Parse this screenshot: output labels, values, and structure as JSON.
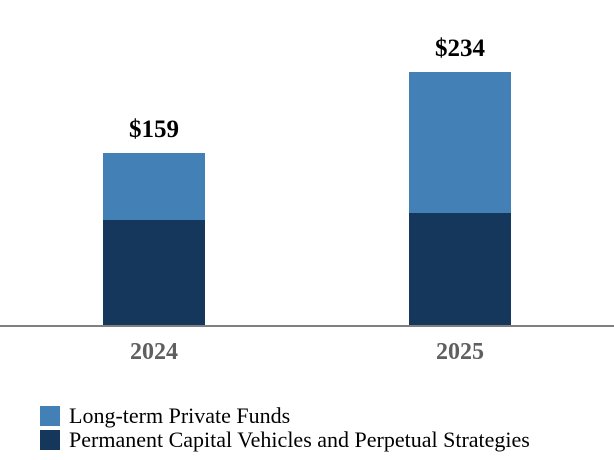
{
  "chart_data": {
    "type": "bar",
    "stacked": true,
    "title": "",
    "xlabel": "",
    "ylabel": "",
    "categories": [
      "2024",
      "2025"
    ],
    "series": [
      {
        "name": "Long-term Private Funds",
        "color": "#4280B5",
        "values": [
          62,
          130
        ]
      },
      {
        "name": "Permanent Capital Vehicles and Perpetual Strategies",
        "color": "#14375B",
        "values": [
          97,
          104
        ]
      }
    ],
    "totals": [
      159,
      234
    ],
    "total_labels": [
      "$159",
      "$234"
    ],
    "ylim": [
      0,
      260
    ],
    "grid": false,
    "legend_position": "bottom-left",
    "colors": {
      "axis_line": "#808080",
      "category_label": "#5F5F5F",
      "value_label": "#000000",
      "background": "#FFFFFF"
    }
  }
}
